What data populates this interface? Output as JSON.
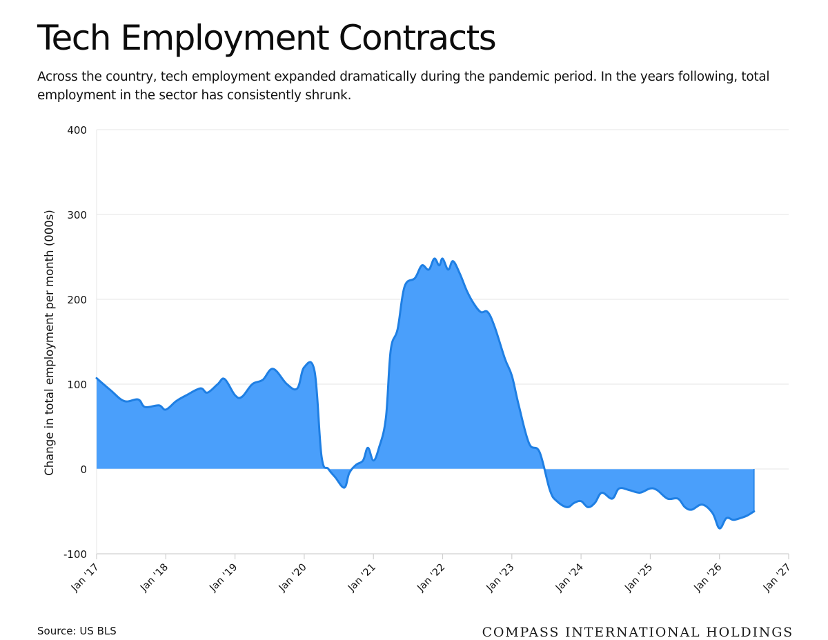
{
  "header": {
    "title": "Tech Employment Contracts",
    "subtitle": "Across the country, tech employment expanded dramatically during the pandemic period. In the years following, total employment in the sector has consistently shrunk."
  },
  "footer": {
    "source": "Source: US BLS",
    "brand": "COMPASS INTERNATIONAL HOLDINGS"
  },
  "chart_data": {
    "type": "area",
    "title": "Tech Employment Contracts",
    "xlabel": "",
    "ylabel": "Change in total employment per month (000s)",
    "ylim": [
      -100,
      400
    ],
    "yticks": [
      -100,
      0,
      100,
      200,
      300,
      400
    ],
    "xlim": [
      2017,
      2027
    ],
    "xticks": [
      {
        "value": 2017,
        "label": "Jan '17"
      },
      {
        "value": 2018,
        "label": "Jan '18"
      },
      {
        "value": 2019,
        "label": "Jan '19"
      },
      {
        "value": 2020,
        "label": "Jan '20"
      },
      {
        "value": 2021,
        "label": "Jan '21"
      },
      {
        "value": 2022,
        "label": "Jan '22"
      },
      {
        "value": 2023,
        "label": "Jan '23"
      },
      {
        "value": 2024,
        "label": "Jan '24"
      },
      {
        "value": 2025,
        "label": "Jan '25"
      },
      {
        "value": 2026,
        "label": "Jan '26"
      },
      {
        "value": 2027,
        "label": "Jan '27"
      }
    ],
    "grid": true,
    "fill_color": "#4a9ffb",
    "line_color": "#1f7fe3",
    "series": [
      {
        "x": [
          2017.0,
          2017.2,
          2017.4,
          2017.6,
          2017.7,
          2017.9,
          2018.0,
          2018.15,
          2018.3,
          2018.5,
          2018.6,
          2018.75,
          2018.85,
          2019.0,
          2019.1,
          2019.25,
          2019.4,
          2019.55,
          2019.75,
          2019.9,
          2020.0,
          2020.15,
          2020.25,
          2020.35,
          2020.45,
          2020.58,
          2020.65,
          2020.75,
          2020.85,
          2020.92,
          2021.0,
          2021.08,
          2021.18,
          2021.25,
          2021.35,
          2021.45,
          2021.6,
          2021.7,
          2021.8,
          2021.88,
          2021.95,
          2022.0,
          2022.08,
          2022.15,
          2022.25,
          2022.35,
          2022.45,
          2022.55,
          2022.65,
          2022.75,
          2022.9,
          2023.0,
          2023.1,
          2023.25,
          2023.4,
          2023.55,
          2023.65,
          2023.8,
          2023.9,
          2024.0,
          2024.1,
          2024.2,
          2024.3,
          2024.45,
          2024.55,
          2024.7,
          2024.85,
          2025.0,
          2025.1,
          2025.25,
          2025.4,
          2025.5,
          2025.6,
          2025.75,
          2025.9,
          2026.0,
          2026.1,
          2026.2,
          2026.3,
          2026.4,
          2026.5
        ],
        "y": [
          107,
          93,
          80,
          82,
          73,
          75,
          70,
          80,
          87,
          95,
          90,
          100,
          106,
          87,
          85,
          100,
          105,
          118,
          100,
          95,
          120,
          115,
          15,
          0,
          -10,
          -22,
          -5,
          5,
          10,
          25,
          10,
          25,
          60,
          140,
          165,
          215,
          225,
          240,
          235,
          248,
          240,
          248,
          235,
          245,
          230,
          210,
          195,
          185,
          185,
          168,
          130,
          110,
          75,
          30,
          20,
          -25,
          -38,
          -45,
          -40,
          -38,
          -45,
          -40,
          -28,
          -35,
          -23,
          -25,
          -28,
          -23,
          -25,
          -35,
          -35,
          -45,
          -48,
          -42,
          -52,
          -70,
          -58,
          -60,
          -58,
          -55,
          -50
        ]
      }
    ]
  }
}
